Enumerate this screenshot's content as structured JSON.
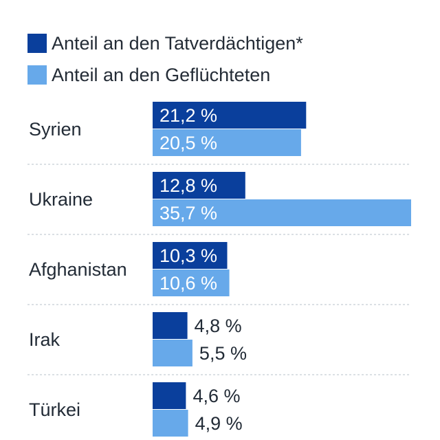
{
  "legend": [
    {
      "label": "Anteil an den Tatverdächtigen*",
      "color": "#0a3f9c"
    },
    {
      "label": "Anteil an den Geflüchteten",
      "color": "#67a9ea"
    }
  ],
  "chart_data": {
    "type": "bar",
    "orientation": "horizontal",
    "categories": [
      "Syrien",
      "Ukraine",
      "Afghanistan",
      "Irak",
      "Türkei"
    ],
    "series": [
      {
        "name": "Anteil an den Tatverdächtigen*",
        "color": "#0a3f9c",
        "values": [
          21.2,
          12.8,
          10.3,
          4.8,
          4.6
        ],
        "labels": [
          "21,2 %",
          "12,8 %",
          "10,3 %",
          "4,8 %",
          "4,6 %"
        ]
      },
      {
        "name": "Anteil an den Geflüchteten",
        "color": "#67a9ea",
        "values": [
          20.5,
          35.7,
          10.6,
          5.5,
          4.9
        ],
        "labels": [
          "20,5 %",
          "35,7 %",
          "10,6 %",
          "5,5 %",
          "4,9 %"
        ]
      }
    ],
    "unit": "%",
    "xlim": [
      0,
      35.7
    ],
    "legend_position": "top-left",
    "grid": false
  }
}
